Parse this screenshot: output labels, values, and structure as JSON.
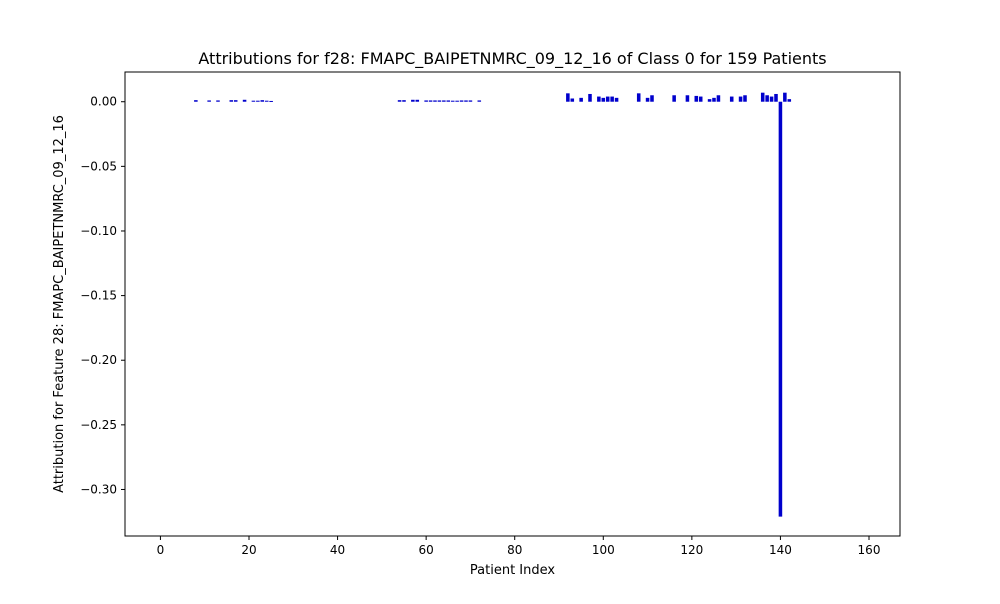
{
  "chart_data": {
    "type": "bar",
    "title": "Attributions for f28: FMAPC_BAIPETNMRC_09_12_16 of Class 0 for 159 Patients",
    "xlabel": "Patient Index",
    "ylabel": "Attribution for Feature 28: FMAPC_BAIPETNMRC_09_12_16",
    "xlim": [
      -8,
      167
    ],
    "ylim": [
      -0.336,
      0.023
    ],
    "x_ticks": [
      0,
      20,
      40,
      60,
      80,
      100,
      120,
      140,
      160
    ],
    "x_tick_labels": [
      "0",
      "20",
      "40",
      "60",
      "80",
      "100",
      "120",
      "140",
      "160"
    ],
    "y_ticks": [
      0.0,
      -0.05,
      -0.1,
      -0.15,
      -0.2,
      -0.25,
      -0.3
    ],
    "y_tick_labels": [
      "0.00",
      "−0.05",
      "−0.10",
      "−0.15",
      "−0.20",
      "−0.25",
      "−0.30"
    ],
    "grid": false,
    "bar_color": "#0000cc",
    "x": [
      8,
      11,
      13,
      16,
      17,
      19,
      21,
      22,
      23,
      24,
      25,
      54,
      55,
      57,
      58,
      60,
      61,
      62,
      63,
      64,
      65,
      66,
      67,
      68,
      69,
      70,
      72,
      92,
      93,
      95,
      97,
      99,
      100,
      101,
      102,
      103,
      108,
      110,
      111,
      116,
      119,
      121,
      122,
      124,
      125,
      126,
      129,
      131,
      132,
      136,
      137,
      138,
      139,
      140,
      141,
      142
    ],
    "values": [
      0.0012,
      0.001,
      0.001,
      0.0012,
      0.0012,
      0.0015,
      0.0008,
      0.0008,
      0.0012,
      0.0008,
      0.0006,
      0.0012,
      0.0012,
      0.0015,
      0.0015,
      0.001,
      0.001,
      0.001,
      0.001,
      0.001,
      0.001,
      0.0008,
      0.0008,
      0.001,
      0.001,
      0.001,
      0.001,
      0.0065,
      0.0025,
      0.003,
      0.006,
      0.004,
      0.003,
      0.004,
      0.004,
      0.003,
      0.0065,
      0.003,
      0.005,
      0.005,
      0.005,
      0.0045,
      0.004,
      0.002,
      0.003,
      0.005,
      0.004,
      0.004,
      0.005,
      0.007,
      0.005,
      0.004,
      0.006,
      -0.321,
      0.007,
      0.002
    ]
  }
}
